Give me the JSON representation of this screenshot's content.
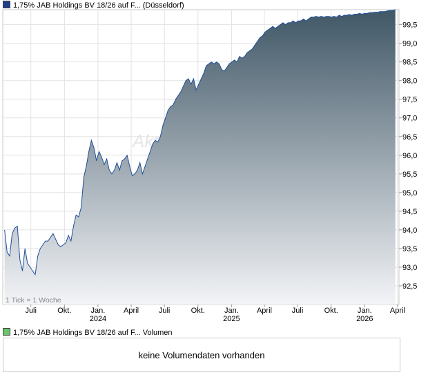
{
  "legend_price": {
    "label": "1,75% JAB Holdings BV 18/26 auf F... (Düsseldorf)",
    "color": "#1f3f8f"
  },
  "legend_volume": {
    "label": "1,75% JAB Holdings BV 18/26 auf F... Volumen",
    "color": "#6cc36c"
  },
  "tick_note": "1 Tick = 1 Woche",
  "watermark": "Akt",
  "volume_message": "keine Volumendaten vorhanden",
  "colors": {
    "line": "#1f4e99",
    "area_top": "#405766",
    "area_bottom": "#f3f4f7",
    "grid": "#e2e2e2"
  },
  "chart_data": {
    "type": "area",
    "title": "1,75% JAB Holdings BV 18/26 auf F... (Düsseldorf)",
    "ylim": [
      92.0,
      99.9
    ],
    "y_ticks": [
      "92,5",
      "93,0",
      "93,5",
      "94,0",
      "94,5",
      "95,0",
      "95,5",
      "96,0",
      "96,5",
      "97,0",
      "97,5",
      "98,0",
      "98,5",
      "99,0",
      "99,5"
    ],
    "y_tick_values": [
      92.5,
      93.0,
      93.5,
      94.0,
      94.5,
      95.0,
      95.5,
      96.0,
      96.5,
      97.0,
      97.5,
      98.0,
      98.5,
      99.0,
      99.5
    ],
    "x_ticks": [
      {
        "label": "Juli",
        "year": "",
        "date": "2023-07-01"
      },
      {
        "label": "Okt.",
        "year": "",
        "date": "2023-10-01"
      },
      {
        "label": "Jan.",
        "year": "2024",
        "date": "2024-01-01"
      },
      {
        "label": "April",
        "year": "",
        "date": "2024-04-01"
      },
      {
        "label": "Juli",
        "year": "",
        "date": "2024-07-01"
      },
      {
        "label": "Okt.",
        "year": "",
        "date": "2024-10-01"
      },
      {
        "label": "Jan.",
        "year": "2025",
        "date": "2025-01-01"
      },
      {
        "label": "April",
        "year": "",
        "date": "2025-04-01"
      },
      {
        "label": "Juli",
        "year": "",
        "date": "2025-07-01"
      },
      {
        "label": "Okt.",
        "year": "",
        "date": "2025-10-01"
      },
      {
        "label": "Jan.",
        "year": "2026",
        "date": "2026-01-01"
      },
      {
        "label": "April",
        "year": "",
        "date": "2026-04-01"
      }
    ],
    "x_range": [
      "2023-04-15",
      "2026-04-05"
    ],
    "grid": true,
    "series": [
      {
        "name": "1,75% JAB Holdings BV 18/26 auf F... (Düsseldorf)",
        "points": [
          [
            "2023-04-20",
            94.0
          ],
          [
            "2023-04-27",
            93.4
          ],
          [
            "2023-05-04",
            93.3
          ],
          [
            "2023-05-11",
            93.9
          ],
          [
            "2023-05-18",
            94.05
          ],
          [
            "2023-05-25",
            94.1
          ],
          [
            "2023-06-01",
            93.2
          ],
          [
            "2023-06-08",
            92.9
          ],
          [
            "2023-06-15",
            93.5
          ],
          [
            "2023-06-22",
            93.1
          ],
          [
            "2023-06-29",
            93.0
          ],
          [
            "2023-07-06",
            92.9
          ],
          [
            "2023-07-13",
            92.8
          ],
          [
            "2023-07-20",
            93.3
          ],
          [
            "2023-07-27",
            93.5
          ],
          [
            "2023-08-03",
            93.6
          ],
          [
            "2023-08-10",
            93.7
          ],
          [
            "2023-08-17",
            93.7
          ],
          [
            "2023-08-24",
            93.8
          ],
          [
            "2023-08-31",
            93.9
          ],
          [
            "2023-09-07",
            93.75
          ],
          [
            "2023-09-14",
            93.6
          ],
          [
            "2023-09-21",
            93.55
          ],
          [
            "2023-09-28",
            93.6
          ],
          [
            "2023-10-05",
            93.65
          ],
          [
            "2023-10-12",
            93.85
          ],
          [
            "2023-10-19",
            93.7
          ],
          [
            "2023-10-26",
            94.1
          ],
          [
            "2023-11-02",
            94.4
          ],
          [
            "2023-11-09",
            94.35
          ],
          [
            "2023-11-16",
            94.6
          ],
          [
            "2023-11-23",
            95.4
          ],
          [
            "2023-11-30",
            95.7
          ],
          [
            "2023-12-07",
            96.1
          ],
          [
            "2023-12-14",
            96.4
          ],
          [
            "2023-12-21",
            96.2
          ],
          [
            "2023-12-28",
            95.85
          ],
          [
            "2024-01-04",
            96.1
          ],
          [
            "2024-01-11",
            95.95
          ],
          [
            "2024-01-18",
            95.75
          ],
          [
            "2024-01-25",
            95.9
          ],
          [
            "2024-02-01",
            95.6
          ],
          [
            "2024-02-08",
            95.5
          ],
          [
            "2024-02-15",
            95.6
          ],
          [
            "2024-02-22",
            95.8
          ],
          [
            "2024-02-29",
            95.6
          ],
          [
            "2024-03-07",
            95.85
          ],
          [
            "2024-03-14",
            95.9
          ],
          [
            "2024-03-21",
            96.0
          ],
          [
            "2024-03-28",
            95.7
          ],
          [
            "2024-04-04",
            95.45
          ],
          [
            "2024-04-11",
            95.5
          ],
          [
            "2024-04-18",
            95.6
          ],
          [
            "2024-04-25",
            95.8
          ],
          [
            "2024-05-02",
            95.5
          ],
          [
            "2024-05-09",
            95.7
          ],
          [
            "2024-05-16",
            95.9
          ],
          [
            "2024-05-23",
            96.1
          ],
          [
            "2024-05-30",
            96.3
          ],
          [
            "2024-06-06",
            96.4
          ],
          [
            "2024-06-13",
            96.35
          ],
          [
            "2024-06-20",
            96.5
          ],
          [
            "2024-06-27",
            96.8
          ],
          [
            "2024-07-04",
            97.0
          ],
          [
            "2024-07-11",
            97.2
          ],
          [
            "2024-07-18",
            97.3
          ],
          [
            "2024-07-25",
            97.35
          ],
          [
            "2024-08-01",
            97.5
          ],
          [
            "2024-08-08",
            97.6
          ],
          [
            "2024-08-15",
            97.7
          ],
          [
            "2024-08-22",
            97.85
          ],
          [
            "2024-08-29",
            98.0
          ],
          [
            "2024-09-05",
            98.05
          ],
          [
            "2024-09-12",
            97.9
          ],
          [
            "2024-09-19",
            98.05
          ],
          [
            "2024-09-26",
            97.75
          ],
          [
            "2024-10-03",
            97.9
          ],
          [
            "2024-10-10",
            98.05
          ],
          [
            "2024-10-17",
            98.2
          ],
          [
            "2024-10-24",
            98.4
          ],
          [
            "2024-10-31",
            98.45
          ],
          [
            "2024-11-07",
            98.5
          ],
          [
            "2024-11-14",
            98.45
          ],
          [
            "2024-11-21",
            98.5
          ],
          [
            "2024-11-28",
            98.45
          ],
          [
            "2024-12-05",
            98.3
          ],
          [
            "2024-12-12",
            98.25
          ],
          [
            "2024-12-19",
            98.35
          ],
          [
            "2024-12-26",
            98.45
          ],
          [
            "2025-01-02",
            98.5
          ],
          [
            "2025-01-09",
            98.55
          ],
          [
            "2025-01-16",
            98.5
          ],
          [
            "2025-01-23",
            98.65
          ],
          [
            "2025-01-30",
            98.6
          ],
          [
            "2025-02-06",
            98.65
          ],
          [
            "2025-02-13",
            98.75
          ],
          [
            "2025-02-20",
            98.8
          ],
          [
            "2025-02-27",
            98.85
          ],
          [
            "2025-03-06",
            98.95
          ],
          [
            "2025-03-13",
            99.05
          ],
          [
            "2025-03-20",
            99.15
          ],
          [
            "2025-03-27",
            99.2
          ],
          [
            "2025-04-03",
            99.3
          ],
          [
            "2025-04-10",
            99.35
          ],
          [
            "2025-04-17",
            99.4
          ],
          [
            "2025-04-24",
            99.45
          ],
          [
            "2025-05-01",
            99.4
          ],
          [
            "2025-05-08",
            99.45
          ],
          [
            "2025-05-15",
            99.5
          ],
          [
            "2025-05-22",
            99.55
          ],
          [
            "2025-05-29",
            99.5
          ],
          [
            "2025-06-05",
            99.55
          ],
          [
            "2025-06-12",
            99.55
          ],
          [
            "2025-06-19",
            99.6
          ],
          [
            "2025-06-26",
            99.55
          ],
          [
            "2025-07-03",
            99.6
          ],
          [
            "2025-07-10",
            99.6
          ],
          [
            "2025-07-17",
            99.65
          ],
          [
            "2025-07-24",
            99.6
          ],
          [
            "2025-07-31",
            99.65
          ],
          [
            "2025-08-07",
            99.7
          ],
          [
            "2025-08-14",
            99.7
          ],
          [
            "2025-08-21",
            99.72
          ],
          [
            "2025-08-28",
            99.7
          ],
          [
            "2025-09-04",
            99.72
          ],
          [
            "2025-09-11",
            99.7
          ],
          [
            "2025-09-18",
            99.72
          ],
          [
            "2025-09-25",
            99.72
          ],
          [
            "2025-10-02",
            99.7
          ],
          [
            "2025-10-09",
            99.72
          ],
          [
            "2025-10-16",
            99.7
          ],
          [
            "2025-10-23",
            99.75
          ],
          [
            "2025-10-30",
            99.72
          ],
          [
            "2025-11-06",
            99.75
          ],
          [
            "2025-11-13",
            99.75
          ],
          [
            "2025-11-20",
            99.77
          ],
          [
            "2025-11-27",
            99.75
          ],
          [
            "2025-12-04",
            99.78
          ],
          [
            "2025-12-11",
            99.78
          ],
          [
            "2025-12-18",
            99.8
          ],
          [
            "2025-12-25",
            99.78
          ],
          [
            "2026-01-01",
            99.8
          ],
          [
            "2026-01-08",
            99.8
          ],
          [
            "2026-01-15",
            99.82
          ],
          [
            "2026-01-22",
            99.82
          ],
          [
            "2026-01-29",
            99.83
          ],
          [
            "2026-02-05",
            99.83
          ],
          [
            "2026-02-12",
            99.85
          ],
          [
            "2026-02-19",
            99.85
          ],
          [
            "2026-02-26",
            99.85
          ],
          [
            "2026-03-05",
            99.87
          ],
          [
            "2026-03-12",
            99.88
          ],
          [
            "2026-03-19",
            99.88
          ],
          [
            "2026-03-26",
            99.9
          ]
        ]
      }
    ]
  }
}
